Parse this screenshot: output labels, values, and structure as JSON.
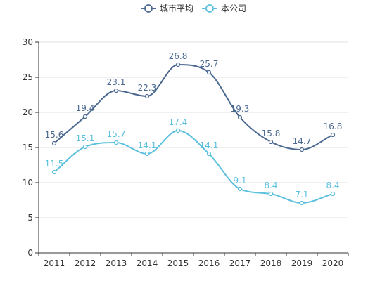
{
  "chart_data": {
    "type": "line",
    "title": "",
    "xlabel": "",
    "ylabel": "",
    "categories": [
      "2011",
      "2012",
      "2013",
      "2014",
      "2015",
      "2016",
      "2017",
      "2018",
      "2019",
      "2020"
    ],
    "ylim": [
      0,
      30
    ],
    "yticks": [
      0,
      5,
      10,
      15,
      20,
      25,
      30
    ],
    "grid": true,
    "legend": "top-center",
    "smooth": true,
    "series": [
      {
        "name": "城市平均",
        "color": "#4a6890",
        "values": [
          15.6,
          19.4,
          23.1,
          22.3,
          26.8,
          25.7,
          19.3,
          15.8,
          14.7,
          16.8
        ],
        "labels": [
          "15.6",
          "19.4",
          "23.1",
          "22.3",
          "26.8",
          "25.7",
          "19.3",
          "15.8",
          "14.7",
          "16.8"
        ]
      },
      {
        "name": "本公司",
        "color": "#5bc0de",
        "values": [
          11.5,
          15.1,
          15.7,
          14.1,
          17.4,
          14.1,
          9.1,
          8.4,
          7.1,
          8.4
        ],
        "labels": [
          "11.5",
          "15.1",
          "15.7",
          "14.1",
          "17.4",
          "14.1",
          "9.1",
          "8.4",
          "7.1",
          "8.4"
        ]
      }
    ]
  }
}
